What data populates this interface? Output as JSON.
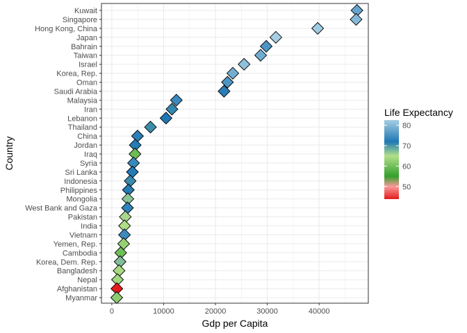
{
  "chart_data": {
    "type": "scatter",
    "title": "",
    "xlabel": "Gdp per Capita",
    "ylabel": "Country",
    "xlim": [
      -2000,
      49500
    ],
    "x_ticks": [
      0,
      10000,
      20000,
      30000,
      40000
    ],
    "x_tick_labels": [
      "0",
      "10000",
      "20000",
      "30000",
      "40000"
    ],
    "grid": true,
    "marker": "diamond",
    "legend": {
      "title": "Life Expectancy",
      "position": "right",
      "range": [
        43.8,
        82.6
      ],
      "ticks": [
        50,
        60,
        70,
        80
      ],
      "tick_labels": [
        "50",
        "60",
        "70",
        "80"
      ],
      "colors": [
        {
          "value": 43.8,
          "color": "#e31a1c"
        },
        {
          "value": 50,
          "color": "#fb9a99"
        },
        {
          "value": 55,
          "color": "#33a02c"
        },
        {
          "value": 65,
          "color": "#b2df8a"
        },
        {
          "value": 72,
          "color": "#1f78b4"
        },
        {
          "value": 82.6,
          "color": "#a6cee3"
        }
      ]
    },
    "points": [
      {
        "country": "Kuwait",
        "gdp": 47307,
        "life": 77.6
      },
      {
        "country": "Singapore",
        "gdp": 47143,
        "life": 80.0
      },
      {
        "country": "Hong Kong, China",
        "gdp": 39725,
        "life": 82.2
      },
      {
        "country": "Japan",
        "gdp": 31656,
        "life": 82.6
      },
      {
        "country": "Bahrain",
        "gdp": 29796,
        "life": 75.6
      },
      {
        "country": "Taiwan",
        "gdp": 28718,
        "life": 78.4
      },
      {
        "country": "Israel",
        "gdp": 25523,
        "life": 80.7
      },
      {
        "country": "Korea, Rep.",
        "gdp": 23348,
        "life": 78.6
      },
      {
        "country": "Oman",
        "gdp": 22316,
        "life": 75.6
      },
      {
        "country": "Saudi Arabia",
        "gdp": 21655,
        "life": 72.8
      },
      {
        "country": "Malaysia",
        "gdp": 12452,
        "life": 74.2
      },
      {
        "country": "Iran",
        "gdp": 11606,
        "life": 71.0
      },
      {
        "country": "Lebanon",
        "gdp": 10461,
        "life": 72.0
      },
      {
        "country": "Thailand",
        "gdp": 7458,
        "life": 70.6
      },
      {
        "country": "China",
        "gdp": 4959,
        "life": 73.0
      },
      {
        "country": "Jordan",
        "gdp": 4519,
        "life": 72.5
      },
      {
        "country": "Iraq",
        "gdp": 4471,
        "life": 59.5
      },
      {
        "country": "Syria",
        "gdp": 4185,
        "life": 74.1
      },
      {
        "country": "Sri Lanka",
        "gdp": 3970,
        "life": 72.4
      },
      {
        "country": "Indonesia",
        "gdp": 3541,
        "life": 70.7
      },
      {
        "country": "Philippines",
        "gdp": 3190,
        "life": 71.7
      },
      {
        "country": "Mongolia",
        "gdp": 3096,
        "life": 66.8
      },
      {
        "country": "West Bank and Gaza",
        "gdp": 3025,
        "life": 73.4
      },
      {
        "country": "Pakistan",
        "gdp": 2606,
        "life": 65.5
      },
      {
        "country": "India",
        "gdp": 2452,
        "life": 64.7
      },
      {
        "country": "Vietnam",
        "gdp": 2442,
        "life": 74.2
      },
      {
        "country": "Yemen, Rep.",
        "gdp": 2281,
        "life": 62.7
      },
      {
        "country": "Cambodia",
        "gdp": 1714,
        "life": 59.7
      },
      {
        "country": "Korea, Dem. Rep.",
        "gdp": 1593,
        "life": 67.3
      },
      {
        "country": "Bangladesh",
        "gdp": 1391,
        "life": 64.1
      },
      {
        "country": "Nepal",
        "gdp": 1091,
        "life": 63.8
      },
      {
        "country": "Afghanistan",
        "gdp": 975,
        "life": 43.8
      },
      {
        "country": "Myanmar",
        "gdp": 944,
        "life": 62.1
      }
    ]
  }
}
